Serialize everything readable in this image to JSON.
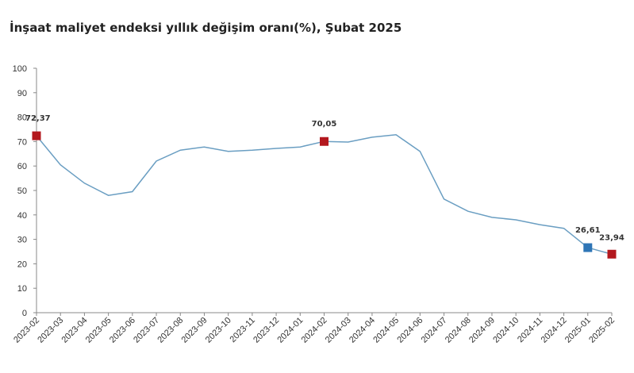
{
  "chart_data": {
    "type": "line",
    "title": "İnşaat maliyet endeksi yıllık değişim oranı(%), Şubat 2025",
    "xlabel": "",
    "ylabel": "",
    "ylim": [
      0,
      100
    ],
    "yticks": [
      "0",
      "10",
      "20",
      "30",
      "40",
      "50",
      "60",
      "70",
      "80",
      "90",
      "100"
    ],
    "grid": false,
    "legend": "none",
    "categories": [
      "2023-02",
      "2023-03",
      "2023-04",
      "2023-05",
      "2023-06",
      "2023-07",
      "2023-08",
      "2023-09",
      "2023-10",
      "2023-11",
      "2023-12",
      "2024-01",
      "2024-02",
      "2024-03",
      "2024-04",
      "2024-05",
      "2024-06",
      "2024-07",
      "2024-08",
      "2024-09",
      "2024-10",
      "2024-11",
      "2024-12",
      "2025-01",
      "2025-02"
    ],
    "series": [
      {
        "values": [
          72.37,
          60.5,
          53.0,
          48.0,
          49.5,
          62.0,
          66.5,
          67.8,
          66.0,
          66.5,
          67.2,
          67.8,
          70.05,
          69.8,
          71.8,
          72.8,
          66.0,
          46.5,
          41.5,
          39.0,
          38.0,
          36.0,
          34.5,
          26.61,
          23.94
        ],
        "color": "#6a9ec2"
      }
    ],
    "highlights": [
      {
        "category": "2023-02",
        "value": 72.37,
        "label": "72,37",
        "color": "#b3181e"
      },
      {
        "category": "2024-02",
        "value": 70.05,
        "label": "70,05",
        "color": "#b3181e"
      },
      {
        "category": "2025-01",
        "value": 26.61,
        "label": "26,61",
        "color": "#2e75b6"
      },
      {
        "category": "2025-02",
        "value": 23.94,
        "label": "23,94",
        "color": "#b3181e"
      }
    ]
  }
}
